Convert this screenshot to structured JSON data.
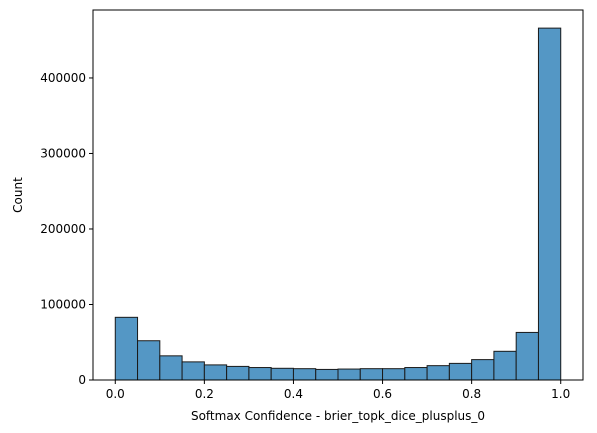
{
  "chart_data": {
    "type": "bar",
    "xlabel": "Softmax Confidence - brier_topk_dice_plusplus_0",
    "ylabel": "Count",
    "bin_edges": [
      0.0,
      0.05,
      0.1,
      0.15,
      0.2,
      0.25,
      0.3,
      0.35,
      0.4,
      0.45,
      0.5,
      0.55,
      0.6,
      0.65,
      0.7,
      0.75,
      0.8,
      0.85,
      0.9,
      0.95,
      1.0
    ],
    "values": [
      83000,
      52000,
      32000,
      24000,
      20000,
      18000,
      16500,
      15500,
      15000,
      14000,
      14500,
      15000,
      15000,
      16500,
      19000,
      22000,
      27000,
      38000,
      63000,
      466000
    ],
    "xlim": [
      -0.05,
      1.05
    ],
    "ylim": [
      0,
      490000
    ],
    "xticks": [
      0.0,
      0.2,
      0.4,
      0.6,
      0.8,
      1.0
    ],
    "xtick_labels": [
      "0.0",
      "0.2",
      "0.4",
      "0.6",
      "0.8",
      "1.0"
    ],
    "yticks": [
      0,
      100000,
      200000,
      300000,
      400000
    ],
    "ytick_labels": [
      "0",
      "100000",
      "200000",
      "300000",
      "400000"
    ],
    "grid": false,
    "bar_color": "#5497c5",
    "edge_color": "#1a1a1a"
  }
}
